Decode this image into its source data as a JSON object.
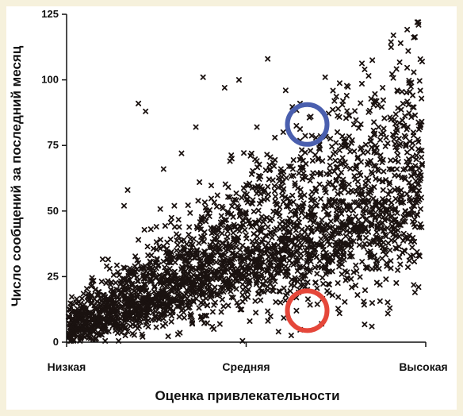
{
  "colors": {
    "background": "#f6f1dc",
    "plot_bg": "#ffffff",
    "points": "#1a1210",
    "highlight_top": "#4a5fae",
    "highlight_bottom": "#e5473a"
  },
  "chart_data": {
    "type": "scatter",
    "xlabel": "Оценка привлекательности",
    "ylabel": "Число сообщений за последний месяц",
    "xlim": [
      0,
      1
    ],
    "ylim": [
      0,
      125
    ],
    "yticks": [
      0,
      25,
      50,
      75,
      100,
      125
    ],
    "xticks": [
      {
        "value": 0,
        "label": "Низкая"
      },
      {
        "value": 0.5,
        "label": "Средняя"
      },
      {
        "value": 1,
        "label": "Высокая"
      }
    ],
    "grid": false,
    "marker": "x",
    "point_count_estimate": 3000,
    "highlights": [
      {
        "name": "blue-circle",
        "x": 0.67,
        "y": 83,
        "color": "#4a5fae"
      },
      {
        "name": "red-circle",
        "x": 0.67,
        "y": 12,
        "color": "#e5473a"
      }
    ],
    "series": [
      {
        "points": [
          [
            0.02,
            3
          ],
          [
            0.03,
            9
          ],
          [
            0.04,
            13
          ],
          [
            0.05,
            13
          ],
          [
            0.06,
            11
          ],
          [
            0.07,
            5
          ],
          [
            0.08,
            20
          ],
          [
            0.09,
            8
          ],
          [
            0.1,
            12
          ],
          [
            0.11,
            4
          ],
          [
            0.12,
            28
          ],
          [
            0.13,
            15
          ],
          [
            0.14,
            6
          ],
          [
            0.15,
            19
          ],
          [
            0.16,
            52
          ],
          [
            0.17,
            58
          ],
          [
            0.18,
            10
          ],
          [
            0.19,
            29
          ],
          [
            0.2,
            39
          ],
          [
            0.21,
            3
          ],
          [
            0.22,
            88
          ],
          [
            0.22,
            17
          ],
          [
            0.24,
            28
          ],
          [
            0.25,
            44
          ],
          [
            0.27,
            66
          ],
          [
            0.27,
            9
          ],
          [
            0.29,
            32
          ],
          [
            0.3,
            52
          ],
          [
            0.31,
            3
          ],
          [
            0.32,
            72
          ],
          [
            0.33,
            24
          ],
          [
            0.34,
            41
          ],
          [
            0.35,
            7
          ],
          [
            0.36,
            82
          ],
          [
            0.37,
            61
          ],
          [
            0.38,
            18
          ],
          [
            0.38,
            101
          ],
          [
            0.4,
            37
          ],
          [
            0.41,
            5
          ],
          [
            0.42,
            56
          ],
          [
            0.43,
            29
          ],
          [
            0.44,
            97
          ],
          [
            0.45,
            14
          ],
          [
            0.46,
            70
          ],
          [
            0.47,
            44
          ],
          [
            0.48,
            100
          ],
          [
            0.49,
            22
          ],
          [
            0.5,
            60
          ],
          [
            0.51,
            8
          ],
          [
            0.52,
            37
          ],
          [
            0.53,
            82
          ],
          [
            0.54,
            16
          ],
          [
            0.55,
            57
          ],
          [
            0.56,
            108
          ],
          [
            0.57,
            26
          ],
          [
            0.58,
            78
          ],
          [
            0.59,
            4
          ],
          [
            0.6,
            46
          ],
          [
            0.61,
            96
          ],
          [
            0.62,
            33
          ],
          [
            0.63,
            66
          ],
          [
            0.64,
            12
          ],
          [
            0.65,
            91
          ],
          [
            0.66,
            53
          ],
          [
            0.67,
            20
          ],
          [
            0.68,
            86
          ],
          [
            0.69,
            37
          ],
          [
            0.7,
            70
          ],
          [
            0.71,
            7
          ],
          [
            0.72,
            101
          ],
          [
            0.73,
            49
          ],
          [
            0.74,
            27
          ],
          [
            0.75,
            76
          ],
          [
            0.76,
            11
          ],
          [
            0.77,
            62
          ],
          [
            0.78,
            94
          ],
          [
            0.79,
            34
          ],
          [
            0.8,
            83
          ],
          [
            0.81,
            18
          ],
          [
            0.82,
            57
          ],
          [
            0.83,
            104
          ],
          [
            0.84,
            42
          ],
          [
            0.85,
            6
          ],
          [
            0.86,
            75
          ],
          [
            0.87,
            28
          ],
          [
            0.88,
            97
          ],
          [
            0.89,
            50
          ],
          [
            0.9,
            13
          ],
          [
            0.91,
            117
          ],
          [
            0.92,
            66
          ],
          [
            0.93,
            114
          ],
          [
            0.94,
            35
          ],
          [
            0.95,
            82
          ],
          [
            0.96,
            99
          ],
          [
            0.97,
            44
          ],
          [
            0.98,
            21
          ],
          [
            0.98,
            121
          ],
          [
            0.99,
            107
          ],
          [
            0.99,
            68
          ],
          [
            0.97,
            19
          ],
          [
            0.02,
            1
          ],
          [
            0.05,
            2
          ],
          [
            0.08,
            1
          ],
          [
            0.2,
            91
          ]
        ]
      }
    ]
  }
}
